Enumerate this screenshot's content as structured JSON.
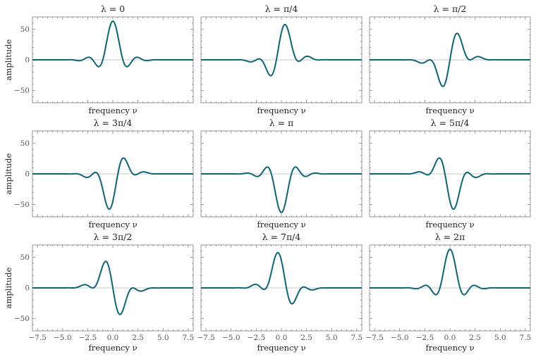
{
  "chart_data": [
    {
      "type": "line",
      "title": "λ = 0",
      "lambda_over_pi": 0.0,
      "xlabel": "frequency ν",
      "ylabel": "amplitude"
    },
    {
      "type": "line",
      "title": "λ = π/4",
      "lambda_over_pi": 0.25,
      "xlabel": "frequency ν",
      "ylabel": ""
    },
    {
      "type": "line",
      "title": "λ = π/2",
      "lambda_over_pi": 0.5,
      "xlabel": "frequency ν",
      "ylabel": ""
    },
    {
      "type": "line",
      "title": "λ = 3π/4",
      "lambda_over_pi": 0.75,
      "xlabel": "frequency ν",
      "ylabel": "amplitude"
    },
    {
      "type": "line",
      "title": "λ = π",
      "lambda_over_pi": 1.0,
      "xlabel": "frequency ν",
      "ylabel": ""
    },
    {
      "type": "line",
      "title": "λ = 5π/4",
      "lambda_over_pi": 1.25,
      "xlabel": "frequency ν",
      "ylabel": ""
    },
    {
      "type": "line",
      "title": "λ = 3π/2",
      "lambda_over_pi": 1.5,
      "xlabel": "frequency ν",
      "ylabel": "amplitude"
    },
    {
      "type": "line",
      "title": "λ = 7π/4",
      "lambda_over_pi": 1.75,
      "xlabel": "frequency ν",
      "ylabel": ""
    },
    {
      "type": "line",
      "title": "λ = 2π",
      "lambda_over_pi": 2.0,
      "xlabel": "frequency ν",
      "ylabel": ""
    }
  ],
  "axes": {
    "xlim": [
      -8,
      8
    ],
    "ylim": [
      -70,
      70
    ],
    "xticks": [
      -7.5,
      -5.0,
      -2.5,
      0.0,
      2.5,
      5.0,
      7.5
    ],
    "xtick_labels": [
      "−7.5",
      "−5.0",
      "−2.5",
      "0.0",
      "2.5",
      "5.0",
      "7.5"
    ],
    "yticks": [
      50,
      0,
      -50
    ],
    "ytick_labels": [
      "50",
      "0",
      "−50"
    ],
    "peak_amplitude": 63
  },
  "colors": {
    "line": "#0f6577",
    "frame": "#7a7a7a",
    "zero_line": "#b9b9b9"
  }
}
